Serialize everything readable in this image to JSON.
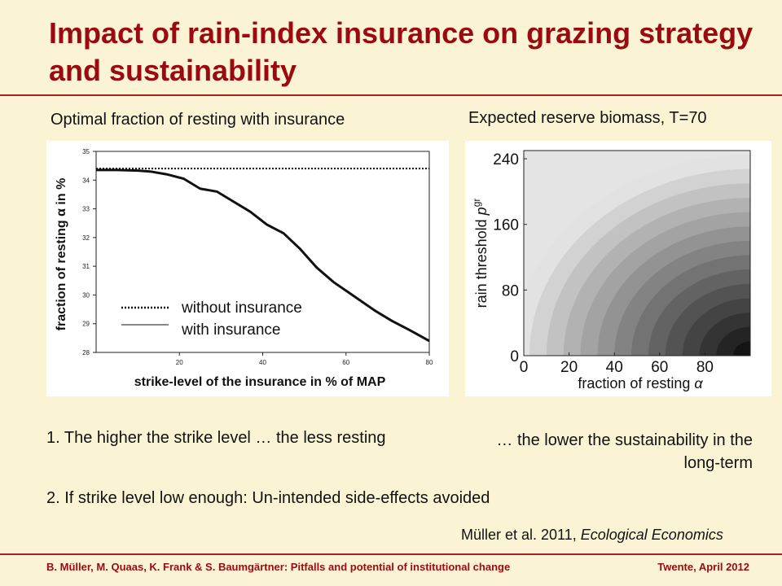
{
  "slide": {
    "title": "Impact of rain-index insurance on grazing strategy and sustainability",
    "left_caption": "Optimal fraction of resting with insurance",
    "right_caption": "Expected reserve biomass, T=70",
    "point1_left": "1. The higher the strike level  … the less resting",
    "point1_right": "… the lower the sustainability in the long-term",
    "point2": "2. If strike level low enough: Un-intended side-effects avoided",
    "citation_authors": "Müller et al. 2011, ",
    "citation_journal": "Ecological Economics",
    "footer_left": "B. Müller, M. Quaas, K. Frank & S. Baumgärtner: Pitfalls and potential of institutional change",
    "footer_right": "Twente, April 2012",
    "colors": {
      "title": "#9a0a10",
      "background": "#fbf4d4",
      "rule": "#a6201e"
    }
  },
  "chart_data": [
    {
      "type": "line",
      "xlabel": "strike-level of the insurance in % of MAP",
      "ylabel": "fraction of resting α in %",
      "xlim": [
        0,
        80
      ],
      "ylim": [
        28,
        35
      ],
      "xticks": [
        "20",
        "40",
        "60",
        "80"
      ],
      "yticks": [
        "28",
        "29",
        "30",
        "31",
        "32",
        "33",
        "34",
        "35"
      ],
      "grid": false,
      "legend_position": "lower-left",
      "series": [
        {
          "name": "without insurance",
          "style": "dotted",
          "x": [
            0,
            80
          ],
          "y": [
            34.4,
            34.4
          ]
        },
        {
          "name": "with insurance",
          "style": "solid",
          "x": [
            0,
            5,
            10,
            13,
            17,
            21,
            25,
            29,
            33,
            37,
            41,
            45,
            49,
            53,
            57,
            61,
            64,
            67,
            71,
            75,
            80
          ],
          "y": [
            34.35,
            34.35,
            34.33,
            34.3,
            34.2,
            34.05,
            33.7,
            33.6,
            33.25,
            32.9,
            32.45,
            32.15,
            31.6,
            30.95,
            30.45,
            30.05,
            29.75,
            29.45,
            29.1,
            28.8,
            28.4
          ]
        }
      ]
    },
    {
      "type": "heatmap",
      "xlabel": "fraction of resting α",
      "ylabel": "rain threshold p^gr",
      "ylabel_main": "rain threshold ",
      "ylabel_var": "p",
      "ylabel_sup": "gr",
      "xlabel_main": "fraction of resting ",
      "xlabel_var": "α",
      "xlim": [
        0,
        100
      ],
      "ylim": [
        0,
        250
      ],
      "xticks": [
        "0",
        "20",
        "40",
        "60",
        "80"
      ],
      "yticks": [
        "0",
        "80",
        "160",
        "240"
      ],
      "description_of_shading": "light where rain threshold high or resting low; dark in lower-right corner"
    }
  ]
}
